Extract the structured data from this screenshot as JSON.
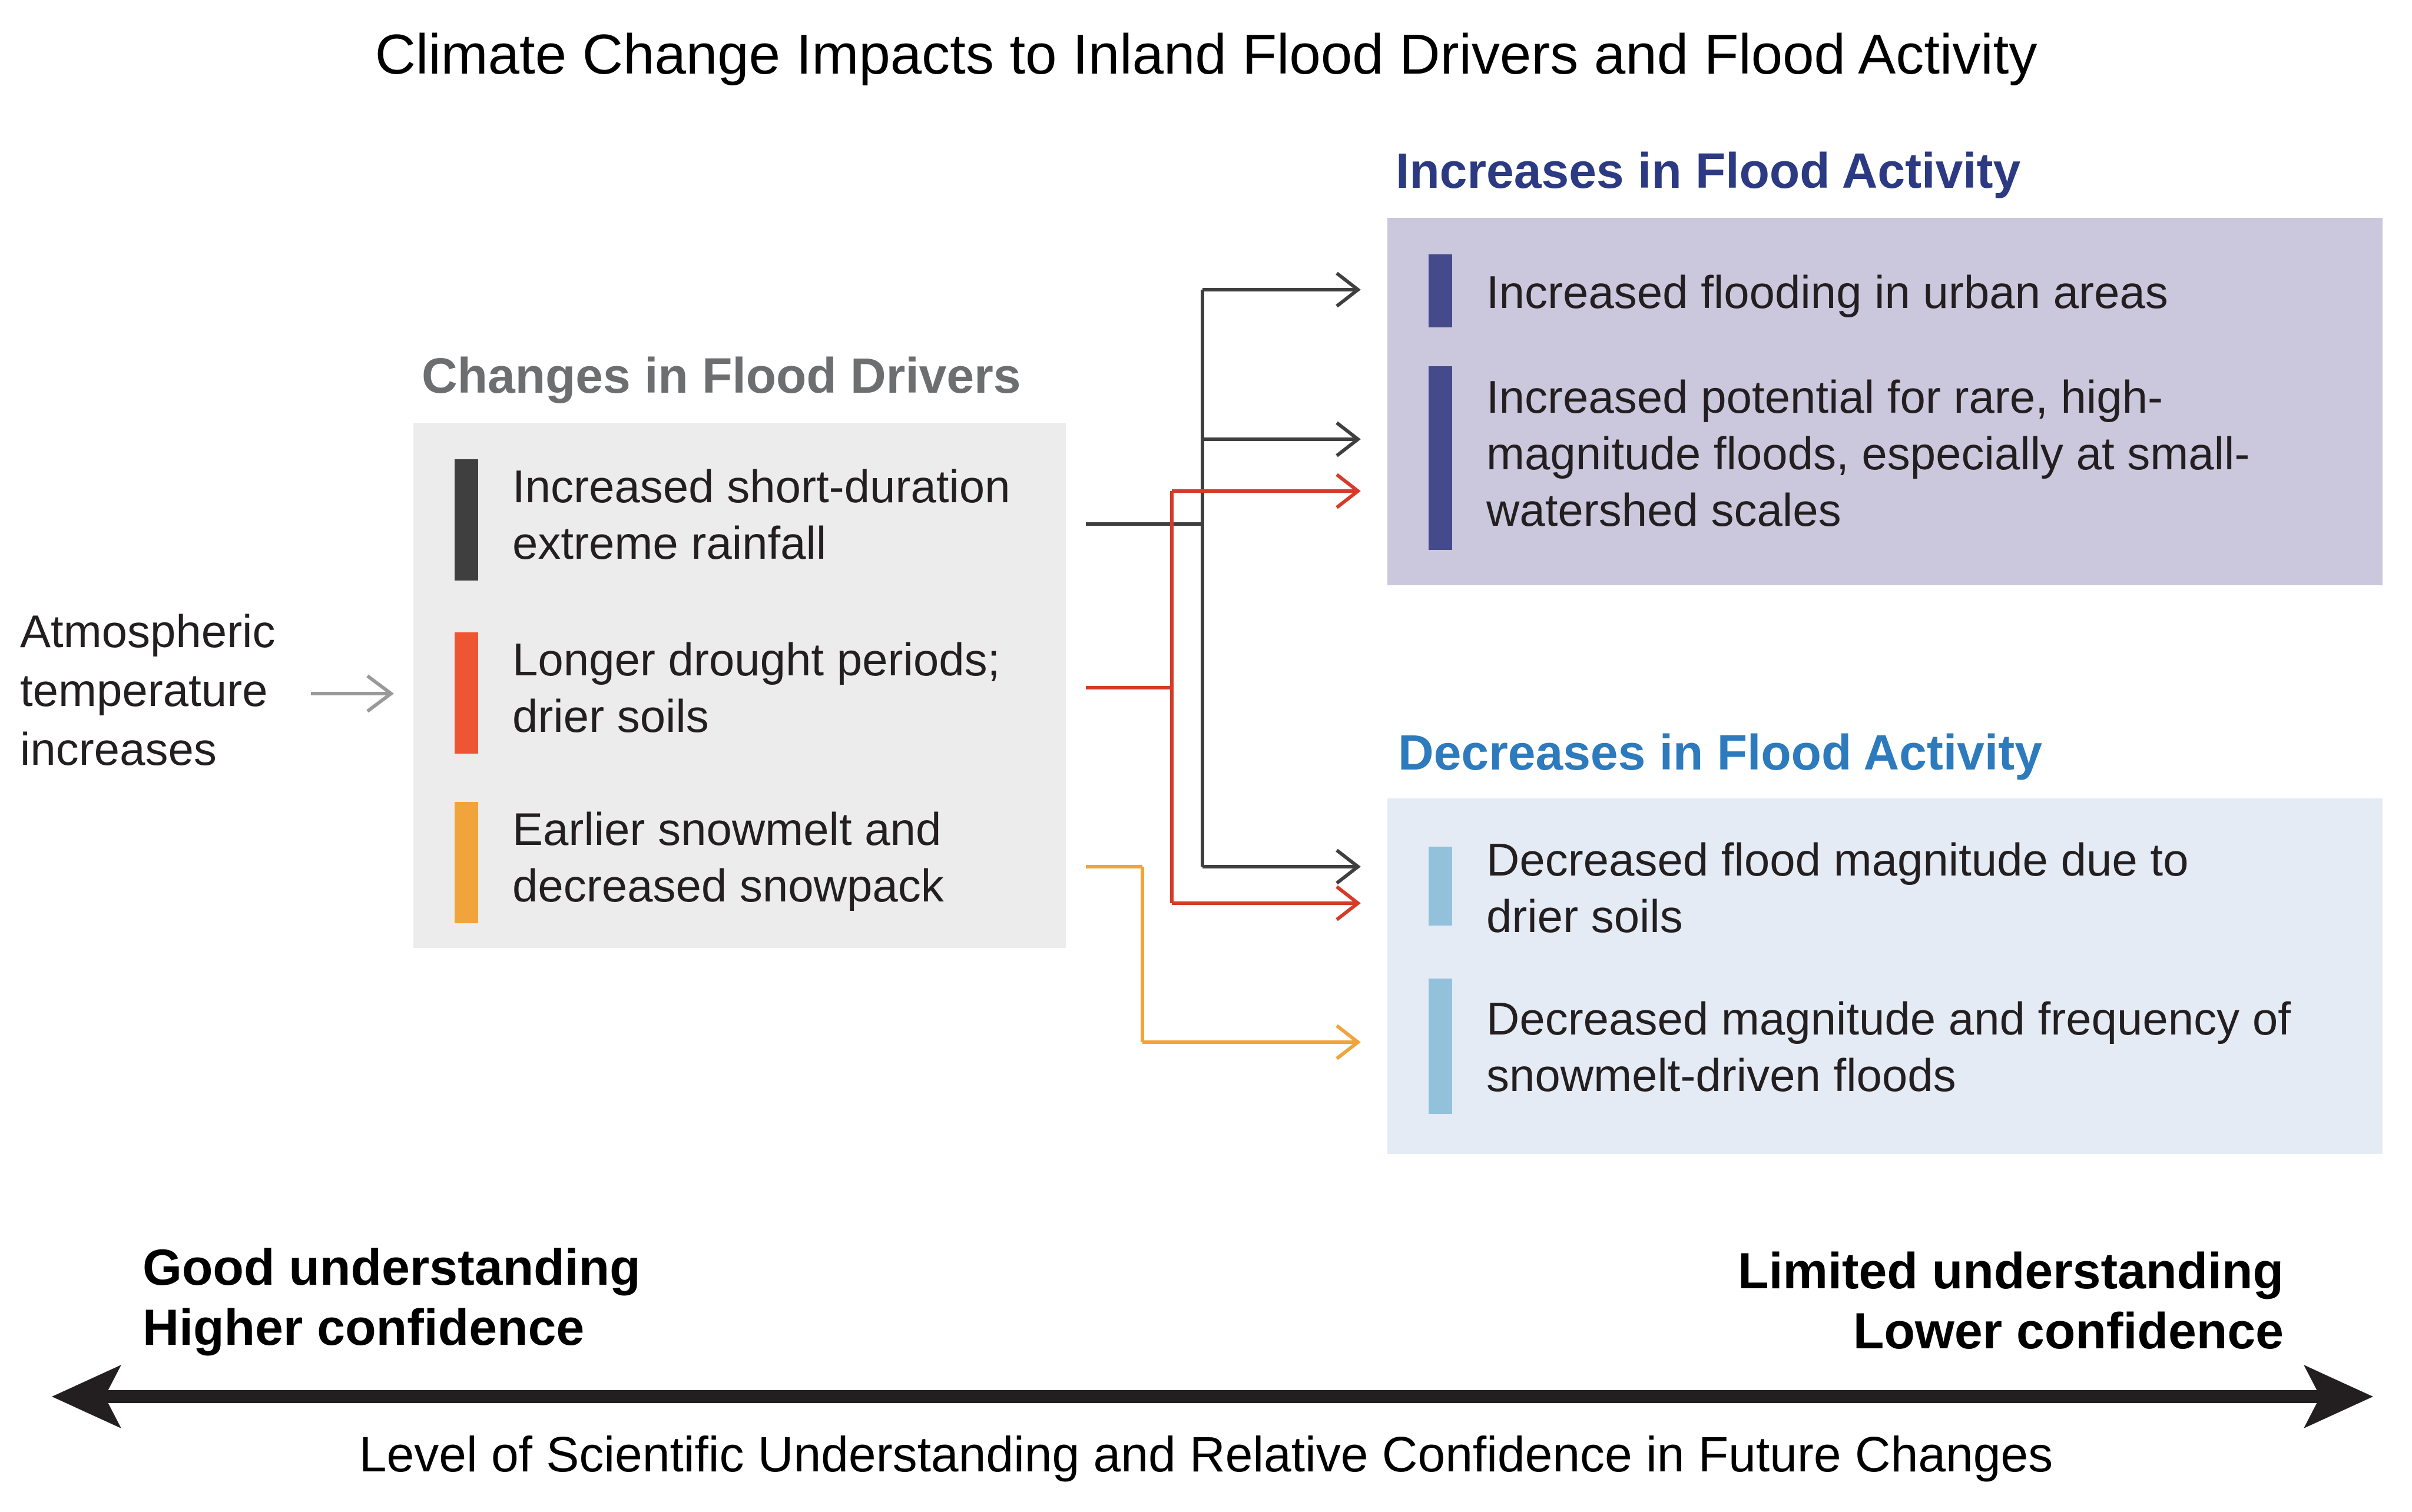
{
  "title": "Climate Change Impacts to Inland Flood Drivers and Flood Activity",
  "input": {
    "lines": [
      "Atmospheric",
      "temperature",
      "increases"
    ]
  },
  "drivers": {
    "heading": "Changes in Flood Drivers",
    "items": [
      {
        "lines": [
          "Increased short-duration",
          "extreme rainfall"
        ],
        "color": "#3f3f3f"
      },
      {
        "lines": [
          "Longer drought periods;",
          "drier soils"
        ],
        "color": "#ee5533"
      },
      {
        "lines": [
          "Earlier snowmelt and",
          "decreased snowpack"
        ],
        "color": "#f1a33c"
      }
    ]
  },
  "increases": {
    "heading": "Increases in Flood Activity",
    "color": "#444a8c",
    "items": [
      {
        "lines": [
          "Increased flooding in urban areas"
        ]
      },
      {
        "lines": [
          "Increased potential for rare, high-",
          "magnitude floods, especially at small-",
          "watershed scales"
        ]
      }
    ]
  },
  "decreases": {
    "heading": "Decreases in Flood Activity",
    "color": "#92c1dc",
    "items": [
      {
        "lines": [
          "Decreased flood magnitude due to",
          "drier soils"
        ]
      },
      {
        "lines": [
          "Decreased magnitude and frequency of",
          "snowmelt-driven floods"
        ]
      }
    ]
  },
  "scale": {
    "left": {
      "line1": "Good understanding",
      "line2": "Higher confidence"
    },
    "right": {
      "line1": "Limited understanding",
      "line2": "Lower confidence"
    },
    "label": "Level of Scientific Understanding and Relative Confidence in Future Changes"
  },
  "colors": {
    "rainfall_connector": "#3f3f3f",
    "drought_connector": "#d63a28",
    "snowmelt_connector": "#f1a33c",
    "input_arrow": "#999999",
    "scale_arrow": "#231f20"
  }
}
